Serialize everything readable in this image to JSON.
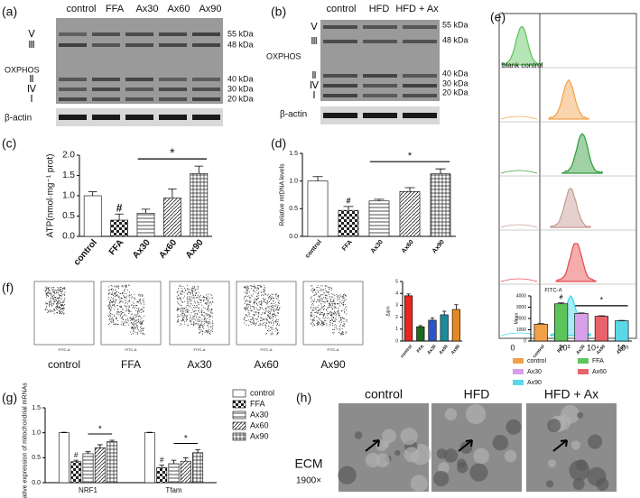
{
  "panel_labels": [
    "(a)",
    "(b)",
    "(c)",
    "(d)",
    "(e)",
    "(f)",
    "(g)",
    "(h)"
  ],
  "blot_a": {
    "lanes": [
      "control",
      "FFA",
      "Ax30",
      "Ax60",
      "Ax90"
    ],
    "bands": [
      "Ⅴ",
      "Ⅲ",
      "Ⅱ",
      "Ⅳ",
      "Ⅰ"
    ],
    "markers": [
      "55 kDa",
      "48 kDa",
      "40 kDa",
      "30 kDa",
      "20 kDa"
    ],
    "label": "OXPHOS",
    "loading": "β-actin"
  },
  "blot_b": {
    "lanes": [
      "control",
      "HFD",
      "HFD + Ax"
    ],
    "bands": [
      "Ⅴ",
      "Ⅲ",
      "Ⅱ",
      "Ⅳ",
      "Ⅰ"
    ],
    "markers": [
      "55 kDa",
      "48 kDa",
      "40 kDa",
      "30 kDa",
      "20 kDa"
    ],
    "label": "OXPHOS",
    "loading": "β-actin"
  },
  "flow": {
    "sample": "blank control",
    "xticks": [
      "0",
      "10³",
      "10⁴",
      "10⁵"
    ]
  },
  "scatter": {
    "samples": [
      "control",
      "FFA",
      "Ax30",
      "Ax60",
      "Ax90"
    ],
    "xlabel": "FITC-A"
  },
  "tem": {
    "groups": [
      "control",
      "HFD",
      "HFD + Ax"
    ],
    "method": "ECM",
    "magnification": "1900×"
  },
  "chart_data": [
    {
      "type": "bar",
      "ylabel": "ATP(nmol·mg⁻¹ prot)",
      "categories": [
        "control",
        "FFA",
        "Ax30",
        "Ax60",
        "Ax90"
      ],
      "values": [
        1.0,
        0.4,
        0.57,
        0.95,
        1.55
      ],
      "errors": [
        0.1,
        0.15,
        0.1,
        0.22,
        0.18
      ],
      "ylim": [
        0,
        2.0
      ],
      "yticks": [
        {
          "value": 0,
          "label": "0.0"
        },
        {
          "value": 0.5,
          "label": "0.5"
        },
        {
          "value": 1,
          "label": "1.0"
        },
        {
          "value": 1.5,
          "label": "1.5"
        },
        {
          "value": 2,
          "label": "2.0"
        }
      ],
      "annotations": [
        "#",
        "*"
      ]
    },
    {
      "type": "bar",
      "ylabel": "Relative mtDNA levels",
      "categories": [
        "control",
        "FFA",
        "Ax30",
        "Ax60",
        "Ax90"
      ],
      "values": [
        1.0,
        0.47,
        0.64,
        0.81,
        1.13
      ],
      "errors": [
        0.08,
        0.07,
        0.03,
        0.07,
        0.09
      ],
      "ylim": [
        0,
        1.5
      ],
      "yticks": [
        {
          "value": 0,
          "label": "0.0"
        },
        {
          "value": 0.5,
          "label": "0.5"
        },
        {
          "value": 1,
          "label": "1.0"
        },
        {
          "value": 1.5,
          "label": "1.5"
        }
      ],
      "annotations": [
        "#",
        "*"
      ]
    },
    {
      "type": "bar",
      "ylabel": "Δψm",
      "categories": [
        "control",
        "FFA",
        "Ax30",
        "Ax60",
        "Ax90"
      ],
      "values": [
        3.8,
        1.2,
        1.75,
        2.2,
        2.65
      ],
      "errors": [
        0.15,
        0.1,
        0.2,
        0.3,
        0.4
      ],
      "colors": [
        "#e8271e",
        "#1b6a1e",
        "#2a54c8",
        "#1b8a9a",
        "#e58a22"
      ],
      "ylim": [
        0,
        5
      ],
      "yticks": [
        0,
        1,
        2,
        3,
        4,
        5
      ]
    },
    {
      "type": "bar",
      "title": "FITC-A",
      "ylabel": "Mean",
      "categories": [
        "control",
        "FFA",
        "Ax30",
        "Ax60",
        "Ax90"
      ],
      "values": [
        1500,
        3300,
        2450,
        2200,
        1800
      ],
      "errors": [
        40,
        80,
        40,
        40,
        30
      ],
      "colors": [
        "#f2a04a",
        "#5cc45a",
        "#d8a0e8",
        "#e8646a",
        "#5ad8e8"
      ],
      "ylim": [
        0,
        4000
      ],
      "yticks": [
        0,
        1000,
        2000,
        3000,
        4000
      ],
      "annotations": [
        "#",
        "*"
      ],
      "legend": true
    },
    {
      "type": "grouped_bar",
      "ylabel": "Relative expression of mitochondrial mRNAs",
      "categories": [
        "NRF1",
        "Tfam"
      ],
      "series": [
        {
          "name": "control",
          "values": [
            1.0,
            1.0
          ],
          "errors": [
            0.01,
            0.01
          ]
        },
        {
          "name": "FFA",
          "values": [
            0.42,
            0.3
          ],
          "errors": [
            0.03,
            0.05
          ]
        },
        {
          "name": "Ax30",
          "values": [
            0.58,
            0.38
          ],
          "errors": [
            0.04,
            0.07
          ]
        },
        {
          "name": "Ax60",
          "values": [
            0.7,
            0.43
          ],
          "errors": [
            0.06,
            0.07
          ]
        },
        {
          "name": "Ax90",
          "values": [
            0.82,
            0.6
          ],
          "errors": [
            0.03,
            0.06
          ]
        }
      ],
      "ylim": [
        0,
        1.5
      ],
      "yticks": [
        {
          "value": 0,
          "label": "0.0"
        },
        {
          "value": 0.5,
          "label": "0.5"
        },
        {
          "value": 1,
          "label": "1.0"
        },
        {
          "value": 1.5,
          "label": "1.5"
        }
      ],
      "annotations": [
        "#",
        "*",
        "#",
        "*"
      ]
    }
  ]
}
